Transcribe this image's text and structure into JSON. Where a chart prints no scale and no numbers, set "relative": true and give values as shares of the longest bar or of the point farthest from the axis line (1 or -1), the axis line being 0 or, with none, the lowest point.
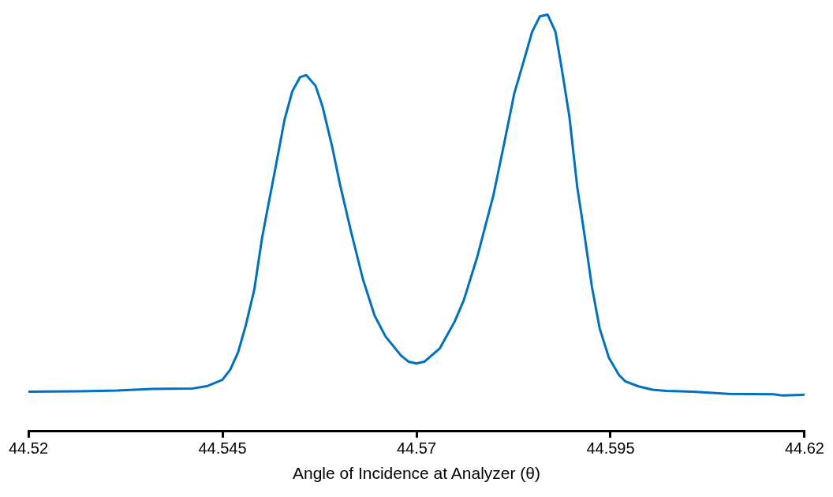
{
  "chart_data": {
    "type": "line",
    "xlabel": "Angle of Incidence at Analyzer (θ)",
    "relative": true,
    "marker": "none",
    "line_style": "solid",
    "xlim": [
      44.52,
      44.62
    ],
    "xticks": [
      44.52,
      44.545,
      44.57,
      44.595,
      44.62
    ],
    "x": [
      44.52,
      44.5265,
      44.5315,
      44.5359,
      44.5412,
      44.5431,
      44.545,
      44.546,
      44.547,
      44.548,
      44.5491,
      44.5501,
      44.5511,
      44.552,
      44.553,
      44.554,
      44.555,
      44.5558,
      44.557,
      44.5579,
      44.5591,
      44.5602,
      44.5616,
      44.5631,
      44.5646,
      44.566,
      44.568,
      44.569,
      44.57,
      44.571,
      44.573,
      44.5749,
      44.5761,
      44.5778,
      44.5799,
      44.5811,
      44.5826,
      44.5839,
      44.5849,
      44.5859,
      44.5869,
      44.5879,
      44.5887,
      44.5897,
      44.5907,
      44.5916,
      44.5926,
      44.5936,
      44.5948,
      44.5961,
      44.5969,
      44.5986,
      44.6004,
      44.6022,
      44.6056,
      44.6102,
      44.616,
      44.6172,
      44.62
    ],
    "series": [
      {
        "color": "#0070c0",
        "values": [
          0.095,
          0.096,
          0.098,
          0.102,
          0.103,
          0.109,
          0.124,
          0.148,
          0.189,
          0.254,
          0.34,
          0.464,
          0.562,
          0.649,
          0.748,
          0.816,
          0.85,
          0.855,
          0.829,
          0.779,
          0.686,
          0.588,
          0.477,
          0.365,
          0.278,
          0.228,
          0.182,
          0.167,
          0.163,
          0.167,
          0.199,
          0.263,
          0.315,
          0.417,
          0.566,
          0.673,
          0.811,
          0.894,
          0.959,
          0.996,
          1,
          0.959,
          0.872,
          0.755,
          0.588,
          0.477,
          0.347,
          0.247,
          0.176,
          0.135,
          0.12,
          0.108,
          0.1,
          0.097,
          0.095,
          0.09,
          0.089,
          0.086,
          0.088
        ]
      }
    ]
  }
}
